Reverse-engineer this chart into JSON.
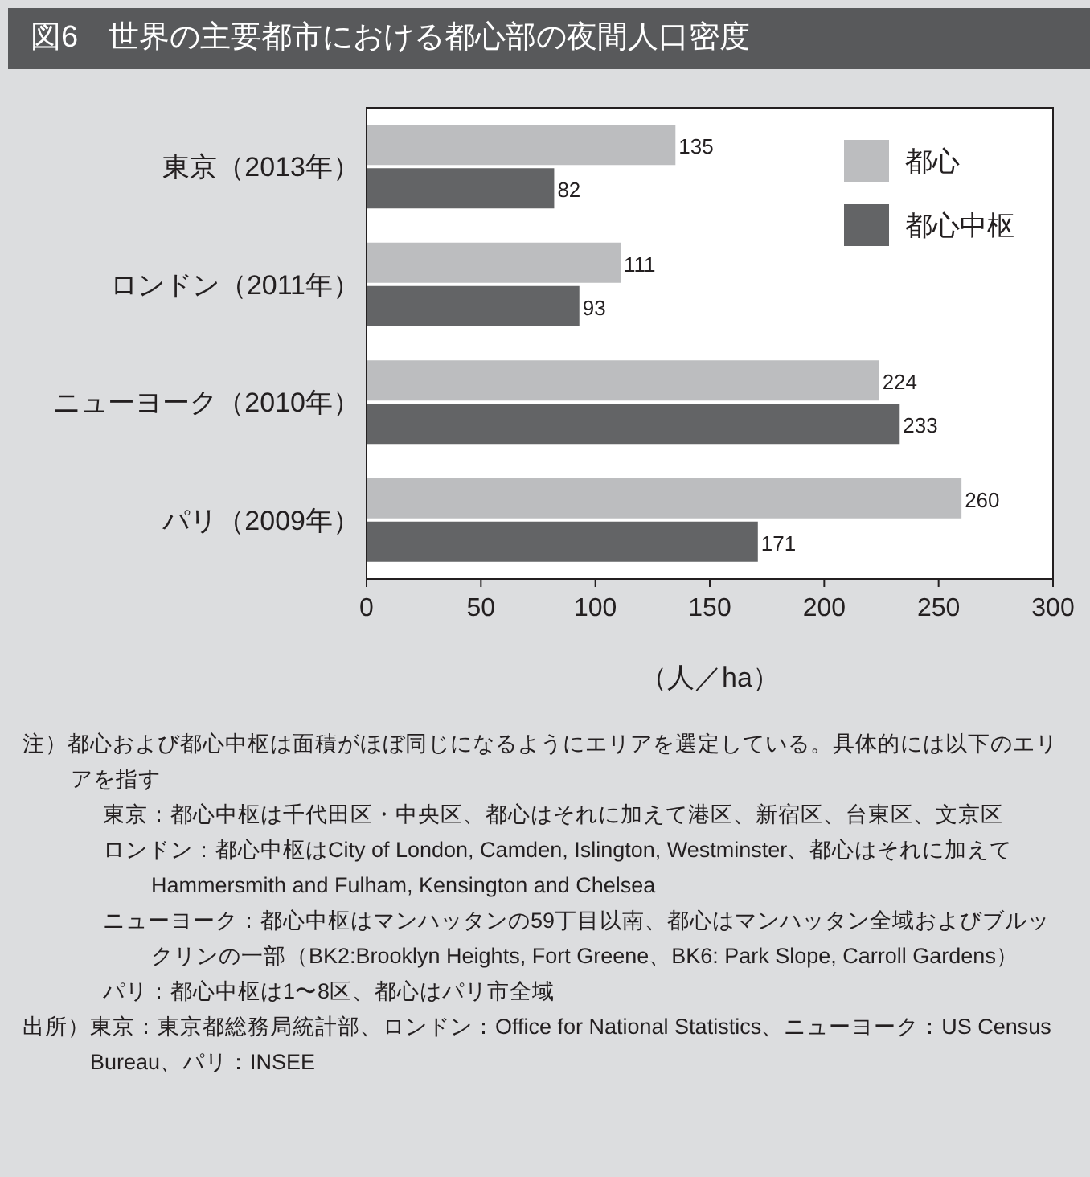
{
  "chart_data": {
    "type": "bar",
    "orientation": "horizontal",
    "title": "図6　世界の主要都市における都心部の夜間人口密度",
    "categories": [
      "東京（2013年）",
      "ロンドン（2011年）",
      "ニューヨーク（2010年）",
      "パリ（2009年）"
    ],
    "series": [
      {
        "name": "都心",
        "color": "#bcbdbf",
        "values": [
          135,
          111,
          224,
          260
        ]
      },
      {
        "name": "都心中枢",
        "color": "#636466",
        "values": [
          82,
          93,
          233,
          171
        ]
      }
    ],
    "xlim": [
      0,
      300
    ],
    "xticks": [
      0,
      50,
      100,
      150,
      200,
      250,
      300
    ],
    "xlabel": "（人／ha）",
    "data_labels": true,
    "legend": "top right",
    "grid": false,
    "annotations": [
      "注）都心および都心中枢は面積がほぼ同じになるようにエリアを選定している。具体的には以下のエリアを指す",
      "東京：都心中枢は千代田区・中央区、都心はそれに加えて港区、新宿区、台東区、文京区",
      "ロンドン：都心中枢はCity of London, Camden, Islington, Westminster、都心はそれに加えてHammersmith and Fulham, Kensington and Chelsea",
      "ニューヨーク：都心中枢はマンハッタンの59丁目以南、都心はマンハッタン全域およびブルックリンの一部（BK2:Brooklyn Heights, Fort Greene、BK6: Park Slope, Carroll Gardens）",
      "パリ：都心中枢は1〜8区、都心はパリ市全域",
      "出所）東京：東京都総務局統計部、ロンドン：Office for National Statistics、ニューヨーク：US Census Bureau、パリ：INSEE"
    ]
  }
}
